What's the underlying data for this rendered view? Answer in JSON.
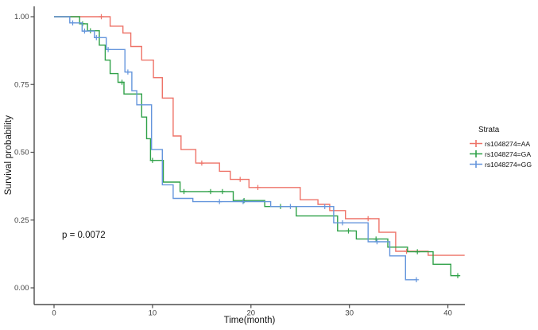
{
  "chart_data": {
    "type": "line",
    "subtype": "kaplan-meier-step-curves",
    "title": "",
    "xlabel": "Time(month)",
    "ylabel": "Survival probability",
    "annotation": "p = 0.0072",
    "legend_title": "Strata",
    "legend_position": "right",
    "xlim": [
      0,
      42
    ],
    "ylim": [
      0,
      1
    ],
    "grid": false,
    "x_ticks": [
      0,
      10,
      20,
      30,
      40
    ],
    "x_tick_labels": [
      "0",
      "10",
      "20",
      "30",
      "40"
    ],
    "y_ticks": [
      0,
      0.25,
      0.5,
      0.75,
      1
    ],
    "y_tick_labels": [
      "0.00",
      "0.25",
      "0.50",
      "0.75",
      "1.00"
    ],
    "axis_color": "#4d4d4d",
    "series": [
      {
        "id": "aa",
        "label": "rs1048274=AA",
        "color": "#ee7368",
        "points": [
          [
            0,
            1
          ],
          [
            5.7,
            0.965
          ],
          [
            7,
            0.94
          ],
          [
            7.8,
            0.89
          ],
          [
            8.9,
            0.84
          ],
          [
            10.1,
            0.775
          ],
          [
            11,
            0.7
          ],
          [
            12.1,
            0.56
          ],
          [
            12.9,
            0.51
          ],
          [
            14.4,
            0.46
          ],
          [
            16.8,
            0.43
          ],
          [
            17.9,
            0.4
          ],
          [
            19.8,
            0.37
          ],
          [
            25,
            0.325
          ],
          [
            26.8,
            0.308
          ],
          [
            28,
            0.285
          ],
          [
            29.6,
            0.255
          ],
          [
            33,
            0.205
          ],
          [
            34.7,
            0.135
          ],
          [
            38,
            0.12
          ],
          [
            41.7,
            0.12
          ]
        ],
        "censors": [
          [
            4.8,
            1
          ],
          [
            15,
            0.46
          ],
          [
            18.9,
            0.4
          ],
          [
            20.7,
            0.37
          ],
          [
            31.9,
            0.255
          ],
          [
            35.8,
            0.135
          ]
        ]
      },
      {
        "id": "ga",
        "label": "rs1048274=GA",
        "color": "#2fa148",
        "points": [
          [
            0,
            1
          ],
          [
            2.6,
            0.974
          ],
          [
            3.4,
            0.948
          ],
          [
            4.6,
            0.895
          ],
          [
            5.2,
            0.84
          ],
          [
            5.7,
            0.79
          ],
          [
            6.5,
            0.758
          ],
          [
            7.1,
            0.715
          ],
          [
            8.9,
            0.63
          ],
          [
            9.4,
            0.55
          ],
          [
            9.8,
            0.47
          ],
          [
            11.1,
            0.39
          ],
          [
            12.8,
            0.355
          ],
          [
            18.2,
            0.322
          ],
          [
            21.4,
            0.3
          ],
          [
            24.6,
            0.265
          ],
          [
            28.8,
            0.21
          ],
          [
            30.7,
            0.18
          ],
          [
            33.9,
            0.15
          ],
          [
            35.9,
            0.133
          ],
          [
            38.5,
            0.087
          ],
          [
            40.3,
            0.045
          ],
          [
            41.2,
            0.045
          ]
        ],
        "censors": [
          [
            2.9,
            0.974
          ],
          [
            3.7,
            0.948
          ],
          [
            6.9,
            0.758
          ],
          [
            10,
            0.47
          ],
          [
            13.2,
            0.355
          ],
          [
            15.9,
            0.355
          ],
          [
            17.1,
            0.355
          ],
          [
            19.3,
            0.322
          ],
          [
            23,
            0.3
          ],
          [
            29.9,
            0.21
          ],
          [
            32.7,
            0.18
          ],
          [
            36.9,
            0.133
          ],
          [
            41,
            0.045
          ]
        ]
      },
      {
        "id": "gg",
        "label": "rs1048274=GG",
        "color": "#6495dc",
        "points": [
          [
            0,
            1
          ],
          [
            1.6,
            0.977
          ],
          [
            2.85,
            0.947
          ],
          [
            4.1,
            0.923
          ],
          [
            5.3,
            0.879
          ],
          [
            7.2,
            0.796
          ],
          [
            7.9,
            0.727
          ],
          [
            8.4,
            0.675
          ],
          [
            9.9,
            0.51
          ],
          [
            11,
            0.38
          ],
          [
            12.1,
            0.33
          ],
          [
            14.1,
            0.318
          ],
          [
            22,
            0.3
          ],
          [
            28.4,
            0.24
          ],
          [
            31.9,
            0.17
          ],
          [
            34.1,
            0.118
          ],
          [
            35.7,
            0.03
          ],
          [
            36.9,
            0.03
          ]
        ],
        "censors": [
          [
            1.9,
            0.977
          ],
          [
            3.1,
            0.947
          ],
          [
            4.3,
            0.923
          ],
          [
            5.5,
            0.879
          ],
          [
            7.5,
            0.796
          ],
          [
            16.8,
            0.318
          ],
          [
            19.2,
            0.318
          ],
          [
            24,
            0.3
          ],
          [
            27.5,
            0.3
          ],
          [
            29.3,
            0.24
          ],
          [
            32.8,
            0.17
          ],
          [
            36.8,
            0.03
          ]
        ]
      }
    ]
  }
}
